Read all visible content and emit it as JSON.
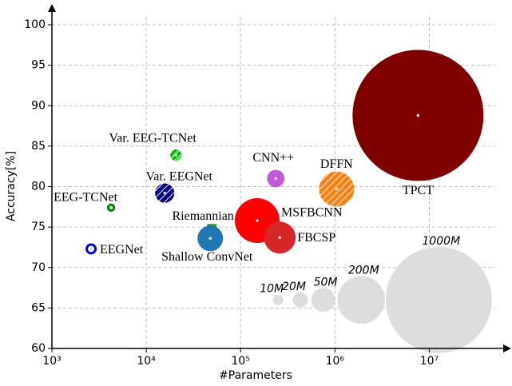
{
  "chart_data": {
    "type": "bubble",
    "x_label": "#Parameters",
    "y_label": "Accuracy[%]",
    "log_x": true,
    "grid": true,
    "xlim": [
      1000,
      50000000
    ],
    "ylim": [
      60,
      100
    ],
    "xticks": [
      {
        "value": 1000,
        "label": "10³"
      },
      {
        "value": 10000,
        "label": "10⁴"
      },
      {
        "value": 100000,
        "label": "10⁵"
      },
      {
        "value": 1000000,
        "label": "10⁶"
      },
      {
        "value": 10000000,
        "label": "10⁷"
      }
    ],
    "yticks": [
      60,
      65,
      70,
      75,
      80,
      85,
      90,
      95,
      100
    ],
    "points": [
      {
        "name": "EEGNet",
        "x": 2600,
        "y": 72.3,
        "size": 11,
        "color": "#0000ff",
        "ring": true
      },
      {
        "name": "EEG-TCNet",
        "x": 4240,
        "y": 77.4,
        "size": 6,
        "color": "#008000",
        "ring": true
      },
      {
        "name": "Var. EEG-TCNet",
        "x": 20600,
        "y": 83.9,
        "size": 11,
        "color": "#33ee33",
        "hatch": "#000000"
      },
      {
        "name": "Var. EEGNet",
        "x": 15700,
        "y": 79.2,
        "size": 33,
        "color": "#000080",
        "hatch": "#ffffff"
      },
      {
        "name": "Riemannian",
        "x": 49500,
        "y": 74.8,
        "size": 8,
        "color": "#2ca02c",
        "marker": "square"
      },
      {
        "name": "Shallow ConvNet",
        "x": 47700,
        "y": 73.6,
        "size": 58,
        "color": "#1f77b4"
      },
      {
        "name": "MSFBCNN",
        "x": 150000,
        "y": 75.8,
        "size": 178,
        "color": "#ff0000"
      },
      {
        "name": "FBCSP",
        "x": 260000,
        "y": 73.7,
        "size": 90,
        "color": "#d62728"
      },
      {
        "name": "CNN++",
        "x": 236000,
        "y": 81.0,
        "size": 27,
        "color": "#bf5bd8"
      },
      {
        "name": "DFFN",
        "x": 1040000,
        "y": 79.7,
        "size": 110,
        "color": "#ff7f0e",
        "hatch": "#ffffff"
      },
      {
        "name": "TPCT",
        "x": 7600000,
        "y": 88.8,
        "size": 1525,
        "color": "#800000"
      }
    ],
    "size_legend": {
      "color": "#dddddd",
      "y": 66,
      "x": [
        250000,
        430000,
        750000,
        1900000,
        12600000
      ],
      "sizes": [
        10,
        20,
        50,
        200,
        1000
      ],
      "labels": [
        "10M",
        "20M",
        "50M",
        "200M",
        "1000M"
      ]
    }
  }
}
